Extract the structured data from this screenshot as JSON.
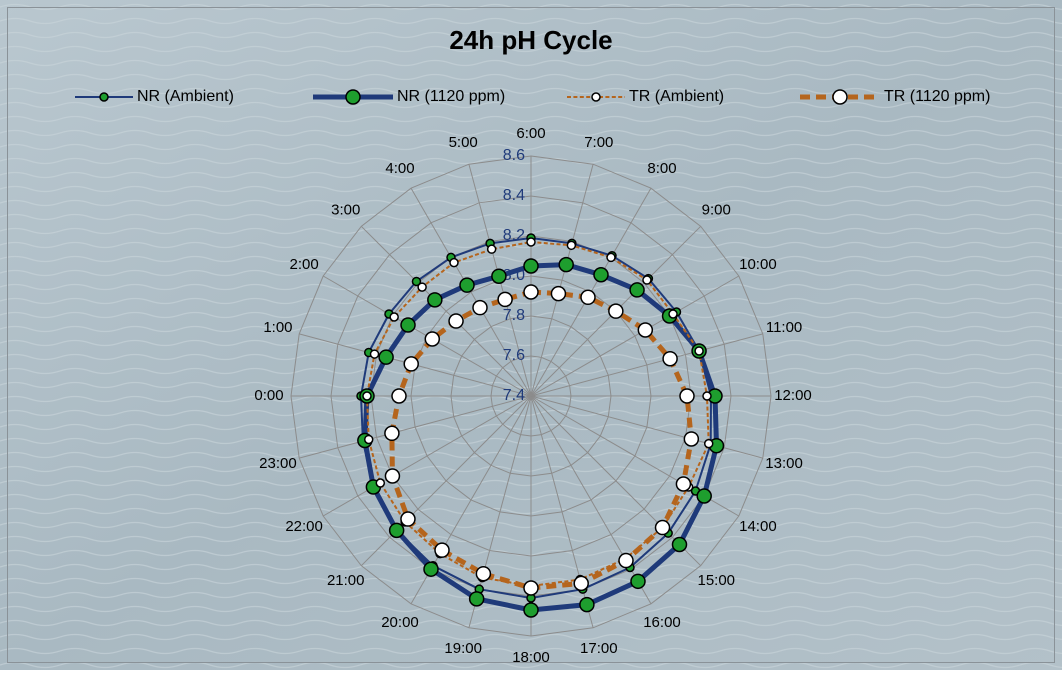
{
  "chart_data": {
    "type": "radar",
    "title": "24h pH Cycle",
    "categories": [
      "6:00",
      "7:00",
      "8:00",
      "9:00",
      "10:00",
      "11:00",
      "12:00",
      "13:00",
      "14:00",
      "15:00",
      "16:00",
      "17:00",
      "18:00",
      "19:00",
      "20:00",
      "21:00",
      "22:00",
      "23:00",
      "0:00",
      "1:00",
      "2:00",
      "3:00",
      "4:00",
      "5:00"
    ],
    "rlim": [
      7.4,
      8.6
    ],
    "rticks": [
      7.4,
      7.6,
      7.8,
      {
        "value": 8,
        "label": "8.0"
      },
      8.2,
      8.4,
      8.6
    ],
    "grid": true,
    "series": [
      {
        "name": "NR (Ambient)",
        "color": "#1f3a7a",
        "marker_color": "#1e9e2e",
        "line_width": 2,
        "dashed": false,
        "marker_size": 4,
        "values": [
          8.19,
          8.19,
          8.21,
          8.23,
          8.24,
          8.27,
          8.3,
          8.33,
          8.35,
          8.37,
          8.39,
          8.4,
          8.41,
          8.4,
          8.38,
          8.35,
          8.31,
          8.27,
          8.25,
          8.24,
          8.22,
          8.21,
          8.2,
          8.19
        ]
      },
      {
        "name": "NR (1120 ppm)",
        "color": "#1f3a7a",
        "marker_color": "#1e9e2e",
        "line_width": 5,
        "dashed": false,
        "marker_size": 7,
        "values": [
          8.05,
          8.08,
          8.1,
          8.15,
          8.2,
          8.27,
          8.32,
          8.36,
          8.4,
          8.45,
          8.47,
          8.48,
          8.47,
          8.45,
          8.4,
          8.35,
          8.31,
          8.26,
          8.22,
          8.15,
          8.11,
          8.08,
          8.04,
          8.02
        ]
      },
      {
        "name": "TR (Ambient)",
        "color": "#b5651d",
        "marker_color": "#ffffff",
        "line_width": 2,
        "dashed": true,
        "marker_size": 4,
        "values": [
          8.17,
          8.18,
          8.2,
          8.22,
          8.22,
          8.27,
          8.28,
          8.32,
          8.31,
          8.33,
          8.34,
          8.35,
          8.35,
          8.34,
          8.31,
          8.29,
          8.27,
          8.24,
          8.22,
          8.21,
          8.19,
          8.17,
          8.17,
          8.16
        ]
      },
      {
        "name": "TR (1120 ppm)",
        "color": "#b5651d",
        "marker_color": "#ffffff",
        "line_width": 5,
        "dashed": true,
        "marker_size": 7,
        "values": [
          7.92,
          7.93,
          7.97,
          8,
          8.06,
          8.12,
          8.18,
          8.23,
          8.28,
          8.33,
          8.35,
          8.37,
          8.36,
          8.32,
          8.29,
          8.27,
          8.2,
          8.12,
          8.06,
          8.02,
          7.97,
          7.93,
          7.91,
          7.9
        ]
      }
    ]
  }
}
